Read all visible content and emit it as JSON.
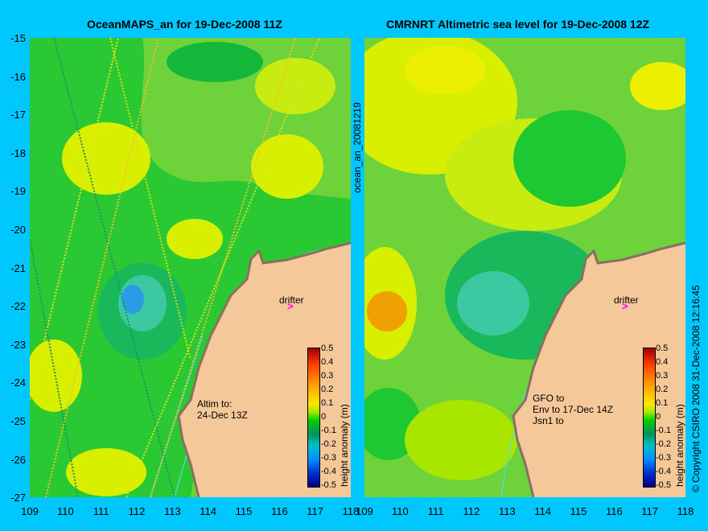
{
  "left": {
    "title": "OceanMAPS_an for 19-Dec-2008 11Z",
    "note": "Altim to:\n24-Dec 13Z",
    "drifter": "drifter",
    "colorbar_label": "height anomaly (m)"
  },
  "right": {
    "title": "CMRNRT Altimetric sea level  for 19-Dec-2008 12Z",
    "note": "GFO to\nEnv to 17-Dec 14Z\nJsn1 to",
    "drifter": "drifter",
    "colorbar_label": "height anomaly (m)"
  },
  "side_label": "ocean_an_20081219",
  "copyright": "© Copyright CSIRO 2008   31-Dec-2008 12:16:45",
  "y_ticks": [
    "-15",
    "-16",
    "-17",
    "-18",
    "-19",
    "-20",
    "-21",
    "-22",
    "-23",
    "-24",
    "-25",
    "-26",
    "-27"
  ],
  "x_ticks": [
    "109",
    "110",
    "111",
    "112",
    "113",
    "114",
    "115",
    "116",
    "117",
    "118"
  ],
  "colorbar_ticks": [
    "0.5",
    "0.4",
    "0.3",
    "0.2",
    "0.1",
    "0",
    "-0.1",
    "-0.2",
    "-0.3",
    "-0.4",
    "-0.5"
  ],
  "colors": {
    "background": "#00c8ff",
    "land": "#f5c89a",
    "ocean_base": "#6ed23a",
    "drifter": "#ff00ff"
  }
}
